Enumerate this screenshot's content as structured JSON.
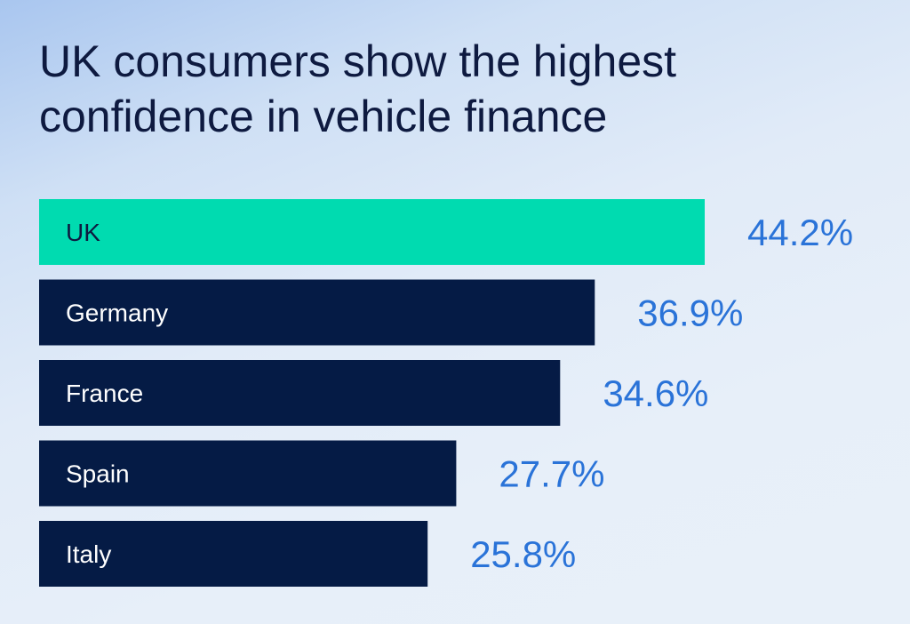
{
  "title_lines": [
    "UK consumers show the highest",
    "confidence in vehicle finance"
  ],
  "colors": {
    "highlight_bar": "#00dbb0",
    "default_bar": "#051b45",
    "bar_label": "#ffffff",
    "highlight_bar_label": "#0e1a40",
    "value_label": "#2a73d8",
    "title": "#0e1a40"
  },
  "chart_data": {
    "type": "bar",
    "orientation": "horizontal",
    "title": "UK consumers show the highest confidence in vehicle finance",
    "categories": [
      "UK",
      "Germany",
      "France",
      "Spain",
      "Italy"
    ],
    "values": [
      44.2,
      36.9,
      34.6,
      27.7,
      25.8
    ],
    "value_labels": [
      "44.2%",
      "36.9%",
      "34.6%",
      "27.7%",
      "25.8%"
    ],
    "highlight": "UK",
    "unit": "%",
    "xlim": [
      0,
      44.2
    ],
    "grid": false,
    "legend": "none"
  }
}
